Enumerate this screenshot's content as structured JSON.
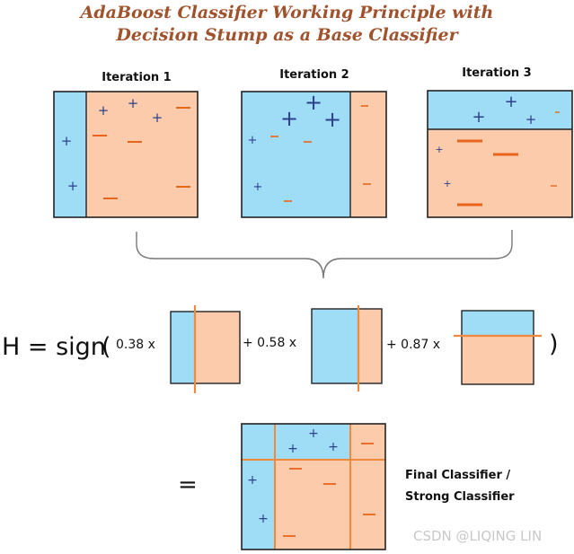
{
  "title": {
    "line1": "AdaBoost Classifier Working Principle with",
    "line2": "Decision Stump as a Base Classifier"
  },
  "iterations": [
    {
      "label": "Iteration 1"
    },
    {
      "label": "Iteration 2"
    },
    {
      "label": "Iteration 3"
    }
  ],
  "formula": {
    "lhs": "H = sign",
    "open_paren": "(",
    "close_paren": ")",
    "weights": [
      "0.38 x",
      "+ 0.58 x",
      "+ 0.87 x"
    ]
  },
  "result": {
    "equals": "=",
    "caption_line1": "Final Classifier /",
    "caption_line2": "Strong Classifier"
  },
  "watermark": "CSDN @LIQING LIN",
  "colors": {
    "positive_region": "#9fdcf6",
    "negative_region": "#fbcbab",
    "plus_sign": "#2b3f8c",
    "minus_sign": "#e8661c",
    "split_line": "#ef8a3c",
    "title": "#a0522d"
  }
}
